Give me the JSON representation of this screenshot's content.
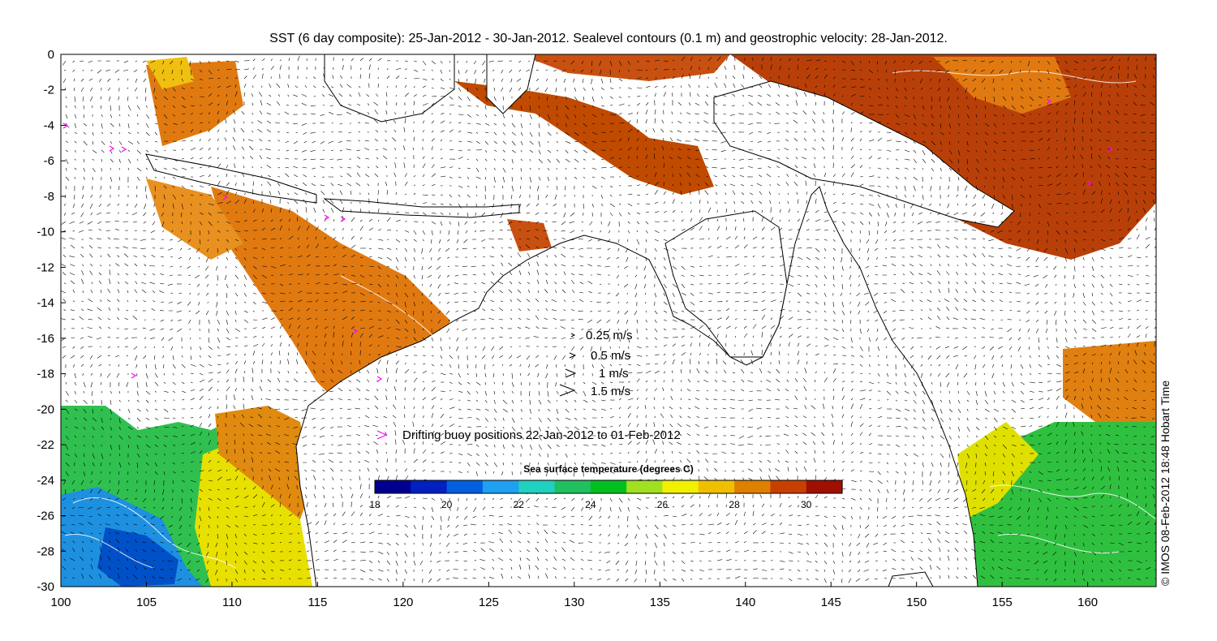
{
  "title": "SST (6 day composite): 25-Jan-2012 - 30-Jan-2012. Sealevel contours (0.1 m) and geostrophic velocity: 28-Jan-2012.",
  "credit": "© IMOS 08-Feb-2012 18:48 Hobart Time",
  "axes": {
    "x_ticks": [
      "100",
      "105",
      "110",
      "115",
      "120",
      "125",
      "130",
      "135",
      "140",
      "145",
      "150",
      "155",
      "160"
    ],
    "y_ticks": [
      "0",
      "-2",
      "-4",
      "-6",
      "-8",
      "-10",
      "-12",
      "-14",
      "-16",
      "-18",
      "-20",
      "-22",
      "-24",
      "-26",
      "-28",
      "-30"
    ],
    "x_range": [
      100,
      164
    ],
    "y_range": [
      -30,
      0
    ]
  },
  "velocity_legend": [
    {
      "label": "0.25 m/s",
      "speed": 0.25
    },
    {
      "label": "0.5 m/s",
      "speed": 0.5
    },
    {
      "label": "1 m/s",
      "speed": 1.0
    },
    {
      "label": "1.5 m/s",
      "speed": 1.5
    }
  ],
  "buoy_legend": {
    "label": "Drifting buoy positions 22-Jan-2012 to 01-Feb-2012",
    "color": "#ff00ff"
  },
  "colorbar": {
    "title": "Sea surface temperature (degrees C)",
    "ticks": [
      "18",
      "20",
      "22",
      "24",
      "26",
      "28",
      "30"
    ],
    "range": [
      18,
      31
    ],
    "colors": [
      "#00008f",
      "#0020c0",
      "#0060e0",
      "#20a0f0",
      "#20d0c0",
      "#20c060",
      "#00c020",
      "#a0e020",
      "#f0f000",
      "#f0c000",
      "#e08000",
      "#c84000",
      "#a01000"
    ]
  },
  "colors": {
    "land": "#ffffff",
    "coast": "#000000",
    "contour": "#ffffff",
    "vector": "#000000"
  }
}
